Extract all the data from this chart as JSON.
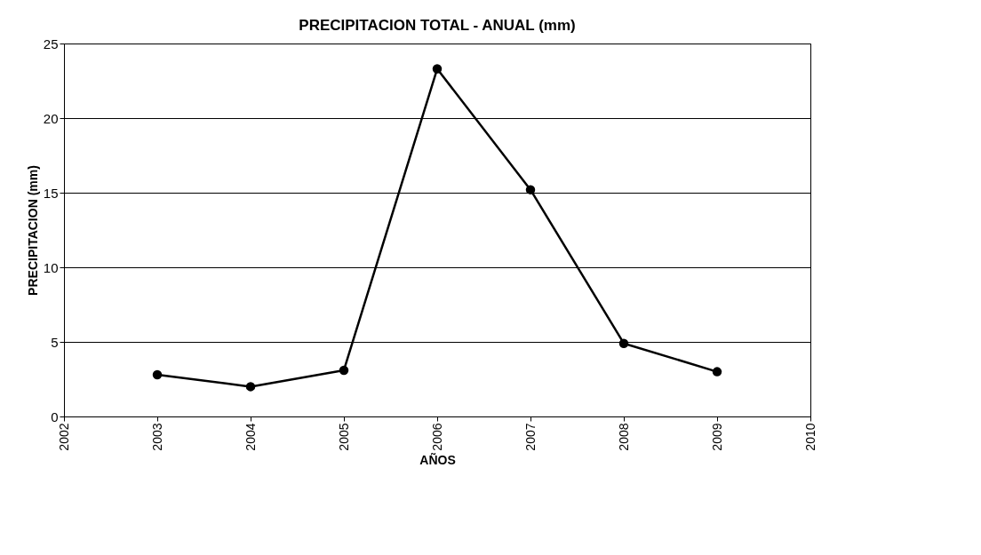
{
  "chart_data": {
    "type": "line",
    "title": "PRECIPITACION TOTAL - ANUAL (mm)",
    "xlabel": "AÑOS",
    "ylabel": "PRECIPITACION (mm)",
    "x": [
      2003,
      2004,
      2005,
      2006,
      2007,
      2008,
      2009
    ],
    "series": [
      {
        "color": "#000000",
        "values": [
          2.8,
          2.0,
          3.1,
          23.3,
          15.2,
          4.9,
          3.0
        ]
      }
    ],
    "xlim": [
      2002,
      2010
    ],
    "xticks": [
      2002,
      2003,
      2004,
      2005,
      2006,
      2007,
      2008,
      2009,
      2010
    ],
    "ylim": [
      0,
      25
    ],
    "yticks": [
      0,
      5,
      10,
      15,
      20,
      25
    ],
    "grid": "y",
    "marker": "circle",
    "line_style": "solid"
  }
}
